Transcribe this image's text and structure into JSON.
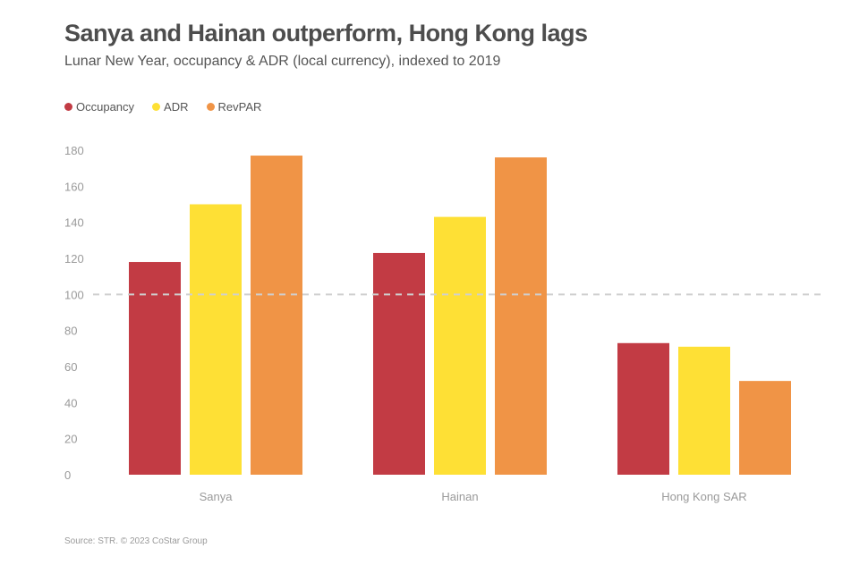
{
  "chart_data": {
    "type": "bar",
    "title": "Sanya and Hainan outperform, Hong Kong lags",
    "subtitle": "Lunar New Year, occupancy & ADR (local currency), indexed to 2019",
    "categories": [
      "Sanya",
      "Hainan",
      "Hong Kong SAR"
    ],
    "series": [
      {
        "name": "Occupancy",
        "color": "#c23b44",
        "values": [
          118,
          123,
          73
        ]
      },
      {
        "name": "ADR",
        "color": "#fee035",
        "values": [
          150,
          143,
          71
        ]
      },
      {
        "name": "RevPAR",
        "color": "#f09446",
        "values": [
          177,
          176,
          52
        ]
      }
    ],
    "ylim": [
      0,
      180
    ],
    "yticks": [
      0,
      20,
      40,
      60,
      80,
      100,
      120,
      140,
      160,
      180
    ],
    "reference_line": {
      "value": 100,
      "style": "dashed"
    },
    "legend_position": "top-left",
    "grid": false,
    "xlabel": "",
    "ylabel": ""
  },
  "source": "Source: STR. © 2023 CoStar Group"
}
